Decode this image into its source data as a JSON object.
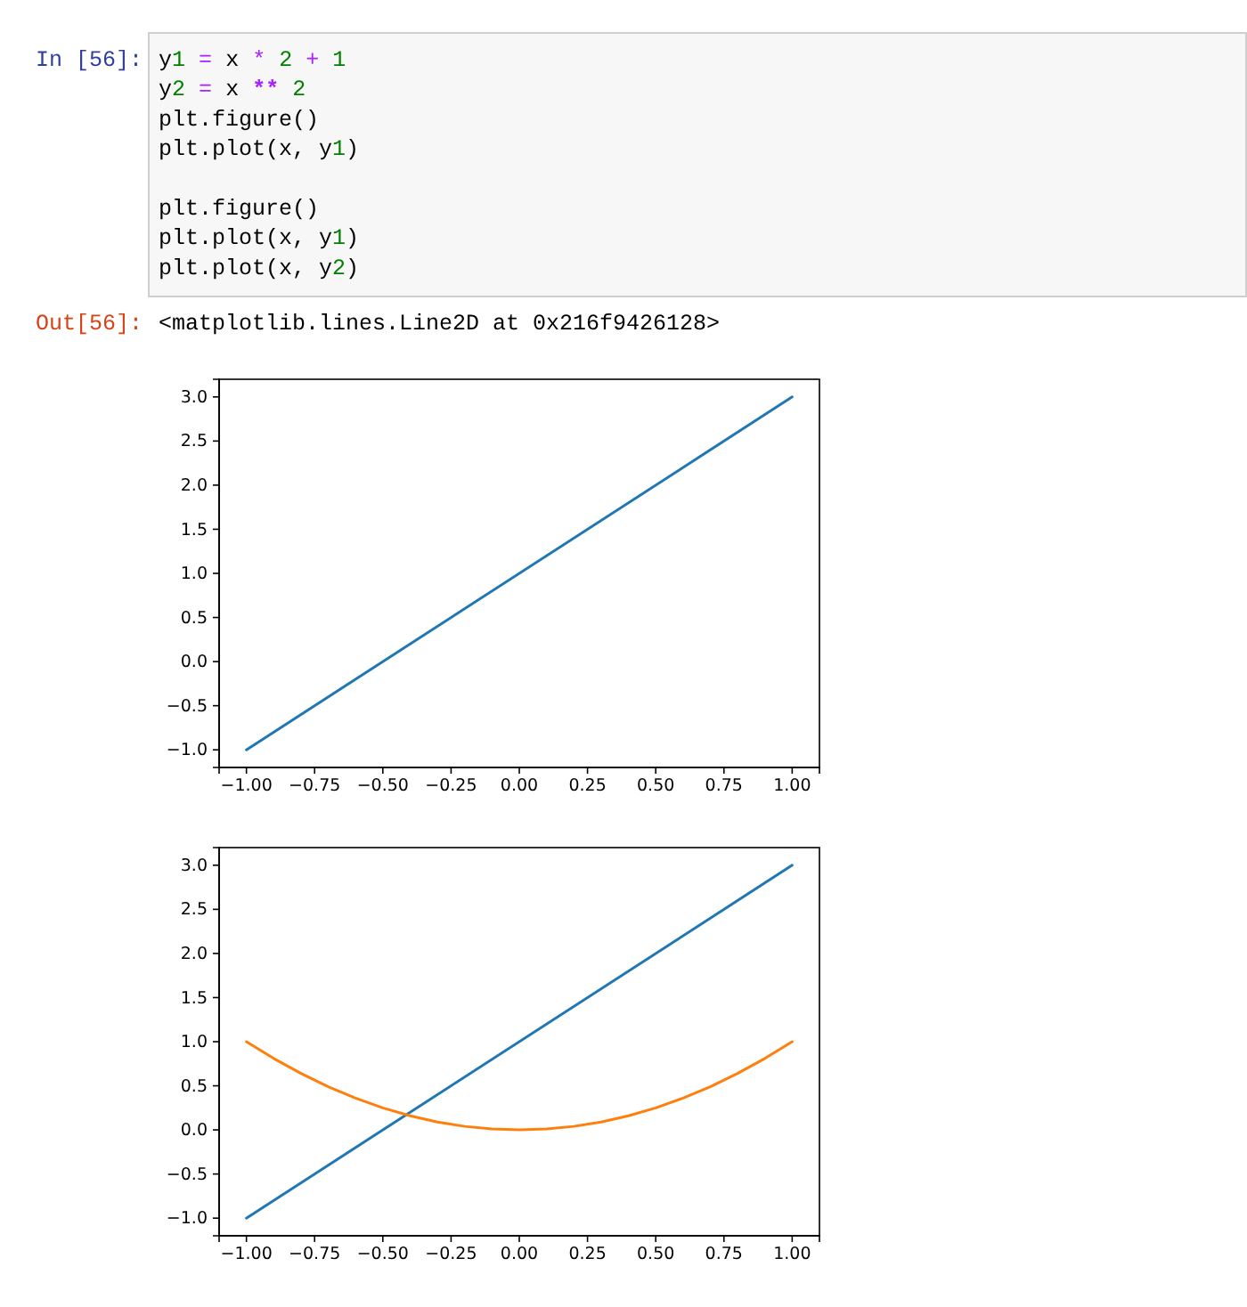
{
  "chart_data": [
    {
      "type": "other",
      "title": "In [56]:",
      "subtitle": "Out[56]:",
      "annotations": [
        "y1 = x * 2 + 1",
        "y2 = x ** 2",
        "plt.figure()",
        "plt.plot(x, y1)",
        "plt.figure()",
        "plt.plot(x, y1)",
        "plt.plot(x, y2)",
        "<matplotlib.lines.Line2D at 0x216f9426128>"
      ]
    },
    {
      "type": "line",
      "x": [
        -1,
        1
      ],
      "series": [
        {
          "color": "#1f77b4",
          "values": [
            -1,
            3
          ]
        }
      ],
      "xlim": [
        -1.1,
        1.1
      ],
      "ylim": [
        -1.2,
        3.2
      ],
      "xticks": [
        {
          "value": -1,
          "label": "−1.00"
        },
        {
          "value": -0.75,
          "label": "−0.75"
        },
        {
          "value": -0.5,
          "label": "−0.50"
        },
        {
          "value": -0.25,
          "label": "−0.25"
        },
        {
          "value": 0,
          "label": "0.00"
        },
        {
          "value": 0.25,
          "label": "0.25"
        },
        {
          "value": 0.5,
          "label": "0.50"
        },
        {
          "value": 0.75,
          "label": "0.75"
        },
        {
          "value": 1,
          "label": "1.00"
        }
      ],
      "yticks": [
        {
          "value": -1,
          "label": "−1.0"
        },
        {
          "value": -0.5,
          "label": "−0.5"
        },
        {
          "value": 0,
          "label": "0.0"
        },
        {
          "value": 0.5,
          "label": "0.5"
        },
        {
          "value": 1,
          "label": "1.0"
        },
        {
          "value": 1.5,
          "label": "1.5"
        },
        {
          "value": 2,
          "label": "2.0"
        },
        {
          "value": 2.5,
          "label": "2.5"
        },
        {
          "value": 3,
          "label": "3.0"
        }
      ]
    },
    {
      "type": "line",
      "series": [
        {
          "color": "#1f77b4",
          "x": [
            -1,
            1
          ],
          "values": [
            -1,
            3
          ]
        },
        {
          "color": "#ff7f0e",
          "x": [
            -1,
            -0.9,
            -0.8,
            -0.7,
            -0.6,
            -0.5,
            -0.4,
            -0.3,
            -0.2,
            -0.1,
            0,
            0.1,
            0.2,
            0.3,
            0.4,
            0.5,
            0.6,
            0.7,
            0.8,
            0.9,
            1
          ],
          "values": [
            1,
            0.81,
            0.64,
            0.49,
            0.36,
            0.25,
            0.16,
            0.09,
            0.04,
            0.01,
            0,
            0.01,
            0.04,
            0.09,
            0.16,
            0.25,
            0.36,
            0.49,
            0.64,
            0.81,
            1
          ]
        }
      ],
      "xlim": [
        -1.1,
        1.1
      ],
      "ylim": [
        -1.2,
        3.2
      ],
      "xticks": [
        {
          "value": -1,
          "label": "−1.00"
        },
        {
          "value": -0.75,
          "label": "−0.75"
        },
        {
          "value": -0.5,
          "label": "−0.50"
        },
        {
          "value": -0.25,
          "label": "−0.25"
        },
        {
          "value": 0,
          "label": "0.00"
        },
        {
          "value": 0.25,
          "label": "0.25"
        },
        {
          "value": 0.5,
          "label": "0.50"
        },
        {
          "value": 0.75,
          "label": "0.75"
        },
        {
          "value": 1,
          "label": "1.00"
        }
      ],
      "yticks": [
        {
          "value": -1,
          "label": "−1.0"
        },
        {
          "value": -0.5,
          "label": "−0.5"
        },
        {
          "value": 0,
          "label": "0.0"
        },
        {
          "value": 0.5,
          "label": "0.5"
        },
        {
          "value": 1,
          "label": "1.0"
        },
        {
          "value": 1.5,
          "label": "1.5"
        },
        {
          "value": 2,
          "label": "2.0"
        },
        {
          "value": 2.5,
          "label": "2.5"
        },
        {
          "value": 3,
          "label": "3.0"
        }
      ]
    }
  ]
}
